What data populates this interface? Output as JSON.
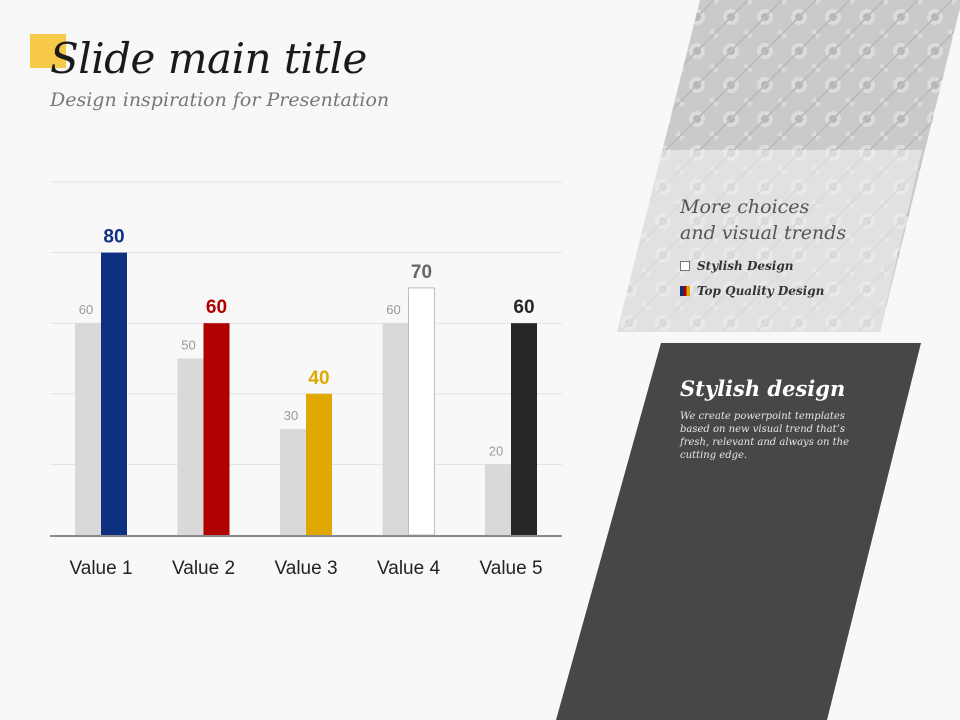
{
  "slide": {
    "title": "Slide main title",
    "subtitle": "Design inspiration for Presentation",
    "accent_color": "#f7c948"
  },
  "side_panel": {
    "heading_line1": "More choices",
    "heading_line2": "and visual trends",
    "legend": [
      {
        "label": "Stylish Design",
        "swatch": "white-box"
      },
      {
        "label": "Top Quality Design",
        "swatch": "tricolor"
      }
    ]
  },
  "dark_panel": {
    "title": "Stylish design",
    "body": "We create powerpoint templates based on new visual trend that’s fresh, relevant and always on the cutting edge.",
    "color": "#474747"
  },
  "chart_data": {
    "type": "bar",
    "categories": [
      "Value 1",
      "Value 2",
      "Value 3",
      "Value 4",
      "Value 5"
    ],
    "ylim": [
      0,
      100
    ],
    "grid": true,
    "series": [
      {
        "values": [
          60,
          50,
          30,
          60,
          20
        ],
        "color": "#d9d9d9",
        "label_color": "#999999"
      },
      {
        "values": [
          80,
          60,
          40,
          70,
          60
        ],
        "colors": [
          "#0d3180",
          "#b00000",
          "#e0a800",
          "#ffffff",
          "#262626"
        ],
        "label_colors": [
          "#0d3180",
          "#b00000",
          "#e0a800",
          "#666666",
          "#262626"
        ]
      }
    ]
  }
}
